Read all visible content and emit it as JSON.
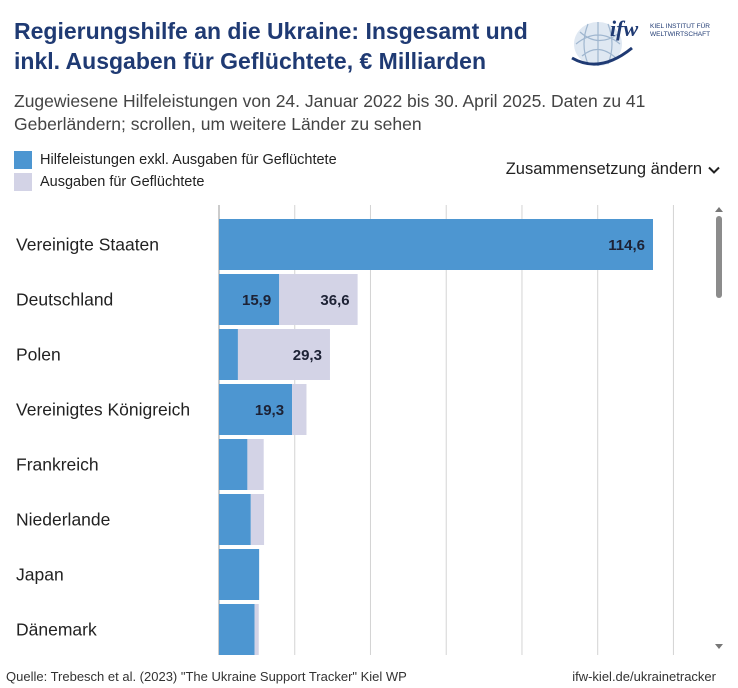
{
  "header": {
    "title": "Regierungshilfe an die Ukraine: Insgesamt und inkl. Ausgaben für Geflüchtete, € Milliarden",
    "subtitle": "Zugewiesene Hilfeleistungen von 24. Januar 2022 bis 30. April 2025. Daten zu 41 Geberländern; scrollen, um weitere Länder zu sehen",
    "logo_text": "ifw",
    "logo_subtext_1": "KIEL INSTITUT FÜR",
    "logo_subtext_2": "WELTWIRTSCHAFT"
  },
  "controls": {
    "composition_label": "Zusammensetzung ändern"
  },
  "colors": {
    "aid": "#4d96d1",
    "refugees": "#d3d3e6",
    "title": "#1f3a73",
    "grid": "#d4d4d4"
  },
  "footer": {
    "source": "Quelle: Trebesch et al. (2023) \"The Ukraine Support Tracker\" Kiel WP",
    "site": "ifw-kiel.de/ukrainetracker"
  },
  "chart_data": {
    "type": "bar",
    "orientation": "horizontal",
    "stacked": true,
    "categories": [
      "Vereinigte Staaten",
      "Deutschland",
      "Polen",
      "Vereinigtes Königreich",
      "Frankreich",
      "Niederlande",
      "Japan",
      "Dänemark"
    ],
    "series": [
      {
        "name": "Hilfeleistungen exkl. Ausgaben für Geflüchtete",
        "color": "#4d96d1",
        "values": [
          114.6,
          15.9,
          5.0,
          19.3,
          7.5,
          8.4,
          10.6,
          9.4
        ]
      },
      {
        "name": "Ausgaben für Geflüchtete",
        "color": "#d3d3e6",
        "values": [
          0,
          20.7,
          24.3,
          3.8,
          4.3,
          3.5,
          0.0,
          1.1
        ]
      }
    ],
    "labels": [
      {
        "category": "Vereinigte Staaten",
        "series": 0,
        "text": "114,6"
      },
      {
        "category": "Deutschland",
        "series": 0,
        "text": "15,9"
      },
      {
        "category": "Deutschland",
        "series": 1,
        "text": "36,6"
      },
      {
        "category": "Polen",
        "series": 1,
        "text": "29,3"
      },
      {
        "category": "Vereinigtes Königreich",
        "series": 0,
        "text": "19,3"
      }
    ],
    "xlim": [
      0,
      130
    ],
    "gridlines": [
      0,
      20,
      40,
      60,
      80,
      100,
      120
    ],
    "grid": true,
    "legend": "top-left"
  }
}
